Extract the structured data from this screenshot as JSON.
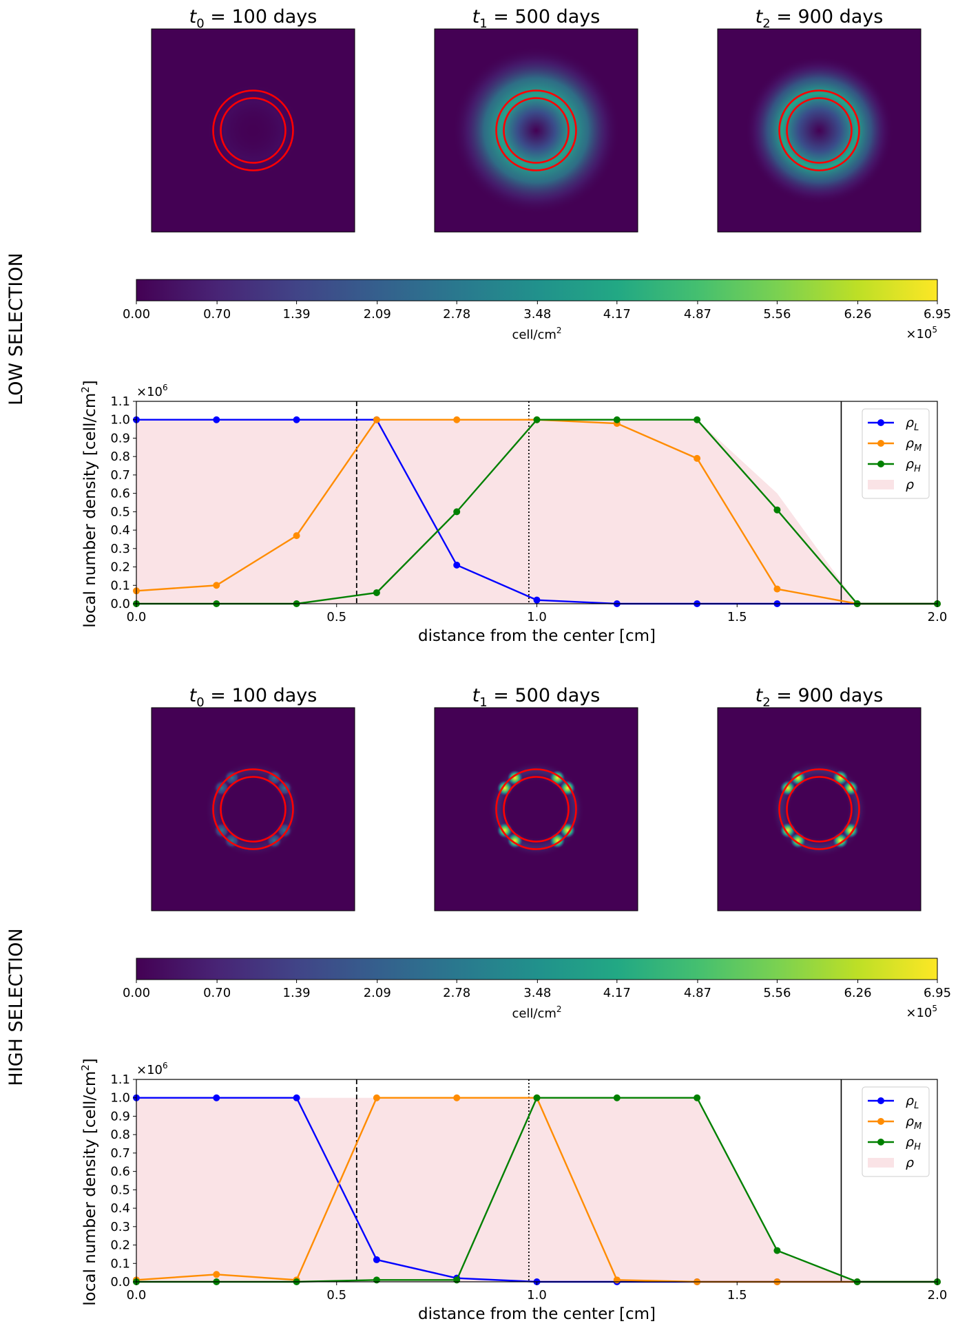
{
  "chart_data": [
    {
      "panel_label": "LOW SELECTION",
      "type": "heatmap",
      "snapshots": [
        {
          "title_var": "t",
          "title_sub": "0",
          "title_rest": " = 100 days",
          "pattern": "diffuse-ring-faint"
        },
        {
          "title_var": "t",
          "title_sub": "1",
          "title_rest": " = 500 days",
          "pattern": "diffuse-ring"
        },
        {
          "title_var": "t",
          "title_sub": "2",
          "title_rest": " = 900 days",
          "pattern": "diffuse-ring-tight"
        }
      ],
      "colorbar": {
        "colormap": "viridis",
        "vmin": 0.0,
        "vmax": 6.95,
        "ticks": [
          "0.00",
          "0.70",
          "1.39",
          "2.09",
          "2.78",
          "3.48",
          "4.17",
          "4.87",
          "5.56",
          "6.26",
          "6.95"
        ],
        "label": "cell/cm",
        "label_sup": "2",
        "offset_base": "×10",
        "offset_exp": "5"
      }
    },
    {
      "panel_label": "LOW SELECTION",
      "type": "line",
      "xlabel": "distance from the center [cm]",
      "ylabel": "local number density [cell/cm",
      "ylabel_sup": "2",
      "ylabel_end": "]",
      "y_offset_base": "×10",
      "y_offset_exp": "6",
      "xlim": [
        0,
        2.0
      ],
      "ylim": [
        0,
        1.1
      ],
      "xticks": [
        "0.0",
        "0.5",
        "1.0",
        "1.5",
        "2.0"
      ],
      "yticks": [
        "0.0",
        "0.1",
        "0.2",
        "0.3",
        "0.4",
        "0.5",
        "0.6",
        "0.7",
        "0.8",
        "0.9",
        "1.0",
        "1.1"
      ],
      "vlines": [
        {
          "x": 0.55,
          "style": "dashed"
        },
        {
          "x": 0.98,
          "style": "dotted"
        },
        {
          "x": 1.76,
          "style": "solid"
        }
      ],
      "x": [
        0.0,
        0.2,
        0.4,
        0.6,
        0.8,
        1.0,
        1.2,
        1.4,
        1.6,
        1.8,
        2.0
      ],
      "series": [
        {
          "name": "ρ",
          "sub": "L",
          "color": "#0000ff",
          "values": [
            1.0,
            1.0,
            1.0,
            1.0,
            0.21,
            0.02,
            0.0,
            0.0,
            0.0,
            0.0,
            0.0
          ]
        },
        {
          "name": "ρ",
          "sub": "M",
          "color": "#ff8c00",
          "values": [
            0.07,
            0.1,
            0.37,
            1.0,
            1.0,
            1.0,
            0.98,
            0.79,
            0.08,
            0.0,
            0.0
          ]
        },
        {
          "name": "ρ",
          "sub": "H",
          "color": "#008000",
          "values": [
            0.0,
            0.0,
            0.0,
            0.06,
            0.5,
            1.0,
            1.0,
            1.0,
            0.51,
            0.0,
            0.0
          ]
        }
      ],
      "total": {
        "name": "ρ",
        "color": "#f4c2c8",
        "values": [
          1.0,
          1.0,
          1.0,
          1.0,
          1.0,
          1.0,
          1.0,
          1.0,
          0.6,
          0.0,
          0.0
        ]
      }
    },
    {
      "panel_label": "HIGH SELECTION",
      "type": "heatmap",
      "snapshots": [
        {
          "title_var": "t",
          "title_sub": "0",
          "title_rest": " = 100 days",
          "pattern": "hotspots-faint"
        },
        {
          "title_var": "t",
          "title_sub": "1",
          "title_rest": " = 500 days",
          "pattern": "hotspots"
        },
        {
          "title_var": "t",
          "title_sub": "2",
          "title_rest": " = 900 days",
          "pattern": "hotspots"
        }
      ],
      "colorbar": {
        "colormap": "viridis",
        "vmin": 0.0,
        "vmax": 6.95,
        "ticks": [
          "0.00",
          "0.70",
          "1.39",
          "2.09",
          "2.78",
          "3.48",
          "4.17",
          "4.87",
          "5.56",
          "6.26",
          "6.95"
        ],
        "label": "cell/cm",
        "label_sup": "2",
        "offset_base": "×10",
        "offset_exp": "5"
      }
    },
    {
      "panel_label": "HIGH SELECTION",
      "type": "line",
      "xlabel": "distance from the center [cm]",
      "ylabel": "local number density [cell/cm",
      "ylabel_sup": "2",
      "ylabel_end": "]",
      "y_offset_base": "×10",
      "y_offset_exp": "6",
      "xlim": [
        0,
        2.0
      ],
      "ylim": [
        0,
        1.1
      ],
      "xticks": [
        "0.0",
        "0.5",
        "1.0",
        "1.5",
        "2.0"
      ],
      "yticks": [
        "0.0",
        "0.1",
        "0.2",
        "0.3",
        "0.4",
        "0.5",
        "0.6",
        "0.7",
        "0.8",
        "0.9",
        "1.0",
        "1.1"
      ],
      "vlines": [
        {
          "x": 0.55,
          "style": "dashed"
        },
        {
          "x": 0.98,
          "style": "dotted"
        },
        {
          "x": 1.76,
          "style": "solid"
        }
      ],
      "x": [
        0.0,
        0.2,
        0.4,
        0.6,
        0.8,
        1.0,
        1.2,
        1.4,
        1.6,
        1.8,
        2.0
      ],
      "series": [
        {
          "name": "ρ",
          "sub": "L",
          "color": "#0000ff",
          "values": [
            1.0,
            1.0,
            1.0,
            0.12,
            0.02,
            0.0,
            0.0,
            0.0,
            0.0,
            0.0,
            0.0
          ]
        },
        {
          "name": "ρ",
          "sub": "M",
          "color": "#ff8c00",
          "values": [
            0.01,
            0.04,
            0.01,
            1.0,
            1.0,
            1.0,
            0.01,
            0.0,
            0.0,
            0.0,
            0.0
          ]
        },
        {
          "name": "ρ",
          "sub": "H",
          "color": "#008000",
          "values": [
            0.0,
            0.0,
            0.0,
            0.01,
            0.01,
            1.0,
            1.0,
            1.0,
            0.17,
            0.0,
            0.0
          ]
        }
      ],
      "total": {
        "name": "ρ",
        "color": "#f4c2c8",
        "values": [
          1.0,
          1.0,
          1.0,
          1.0,
          1.0,
          1.0,
          1.0,
          1.0,
          0.17,
          0.0,
          0.0
        ]
      }
    }
  ]
}
